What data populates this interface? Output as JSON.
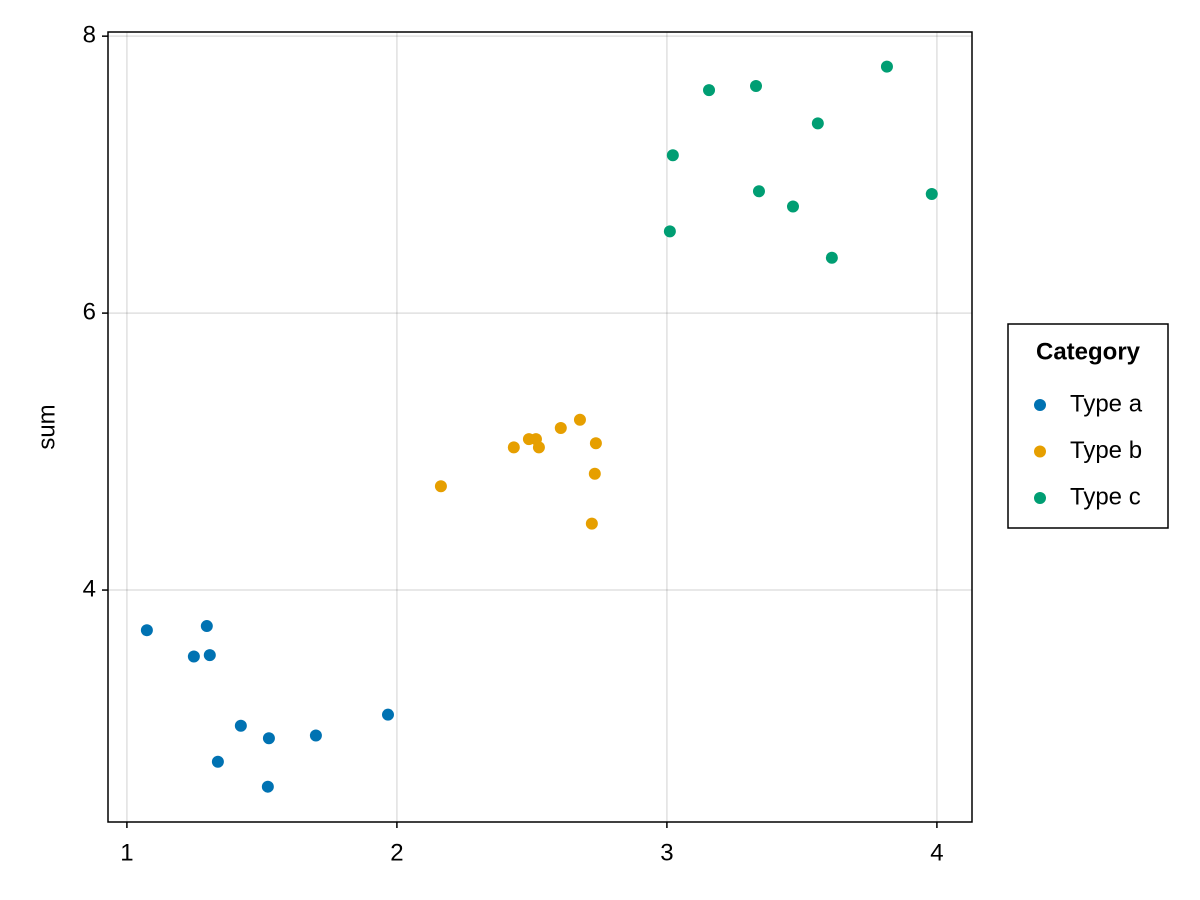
{
  "chart_data": {
    "type": "scatter",
    "ylabel": "sum",
    "xlim": [
      0.93,
      4.13
    ],
    "ylim": [
      2.325,
      8.03
    ],
    "xticks": [
      1,
      2,
      3,
      4
    ],
    "yticks": [
      4,
      6,
      8
    ],
    "grid": true,
    "legend_title": "Category",
    "legend_position": "right",
    "series": [
      {
        "name": "Type a",
        "color": "#0072b2",
        "x": [
          1.074,
          1.296,
          1.248,
          1.307,
          1.422,
          1.526,
          1.7,
          1.967,
          1.337,
          1.522
        ],
        "y": [
          3.71,
          3.74,
          3.52,
          3.53,
          3.02,
          2.93,
          2.95,
          3.1,
          2.76,
          2.58
        ]
      },
      {
        "name": "Type b",
        "color": "#e69f00",
        "x": [
          2.163,
          2.433,
          2.489,
          2.515,
          2.526,
          2.607,
          2.678,
          2.737,
          2.733,
          2.722
        ],
        "y": [
          4.75,
          5.03,
          5.09,
          5.09,
          5.03,
          5.17,
          5.23,
          5.06,
          4.84,
          4.48
        ]
      },
      {
        "name": "Type c",
        "color": "#009e73",
        "x": [
          3.011,
          3.022,
          3.156,
          3.33,
          3.341,
          3.467,
          3.559,
          3.611,
          3.815,
          3.981
        ],
        "y": [
          6.59,
          7.14,
          7.61,
          7.64,
          6.88,
          6.77,
          7.37,
          6.4,
          7.78,
          6.86
        ]
      }
    ]
  }
}
